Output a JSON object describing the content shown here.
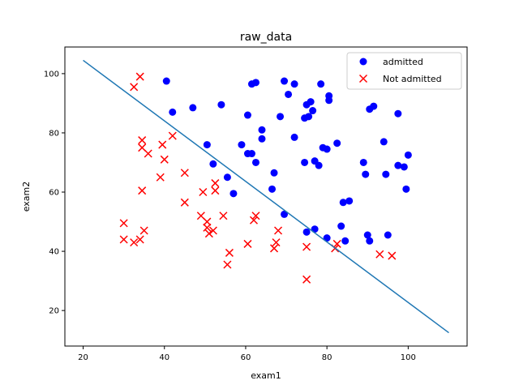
{
  "chart_data": {
    "type": "scatter",
    "title": "raw_data",
    "xlabel": "exam1",
    "ylabel": "exam2",
    "xlim": [
      15.5,
      114.5
    ],
    "ylim": [
      8,
      109
    ],
    "xticks": [
      20,
      40,
      60,
      80,
      100
    ],
    "yticks": [
      20,
      40,
      60,
      80,
      100
    ],
    "grid": false,
    "legend_position": "top-right",
    "series": [
      {
        "name": "admitted",
        "marker": "circle",
        "color": "#0000ff",
        "points": [
          [
            40.5,
            97.5
          ],
          [
            42,
            87
          ],
          [
            47,
            88.5
          ],
          [
            54,
            89.5
          ],
          [
            50.5,
            76
          ],
          [
            52,
            69.5
          ],
          [
            55.5,
            65
          ],
          [
            57,
            59.5
          ],
          [
            59,
            76
          ],
          [
            60.5,
            86
          ],
          [
            60.5,
            73
          ],
          [
            61.5,
            73
          ],
          [
            61.5,
            96.5
          ],
          [
            62.5,
            97
          ],
          [
            62.5,
            70
          ],
          [
            64,
            78
          ],
          [
            64,
            81
          ],
          [
            66.5,
            61
          ],
          [
            67,
            66.5
          ],
          [
            68.5,
            85.5
          ],
          [
            69.5,
            97.5
          ],
          [
            69.5,
            52.5
          ],
          [
            70.5,
            93
          ],
          [
            72,
            96.5
          ],
          [
            72,
            78.5
          ],
          [
            74.5,
            85
          ],
          [
            74.5,
            70
          ],
          [
            75,
            89.5
          ],
          [
            75.5,
            85.5
          ],
          [
            76,
            90.5
          ],
          [
            76.5,
            87.5
          ],
          [
            77,
            70.5
          ],
          [
            78,
            69
          ],
          [
            78.5,
            96.5
          ],
          [
            79,
            75
          ],
          [
            80,
            74.5
          ],
          [
            80.5,
            92.5
          ],
          [
            80.5,
            91
          ],
          [
            82.5,
            76.5
          ],
          [
            77,
            47.5
          ],
          [
            75,
            46.5
          ],
          [
            80,
            44.5
          ],
          [
            83.5,
            48.5
          ],
          [
            84,
            56.5
          ],
          [
            84.5,
            43.5
          ],
          [
            85.5,
            57
          ],
          [
            89,
            70
          ],
          [
            89.5,
            66
          ],
          [
            90,
            45.5
          ],
          [
            90.5,
            43.5
          ],
          [
            90.5,
            88
          ],
          [
            91.5,
            89
          ],
          [
            94,
            77
          ],
          [
            94.5,
            66
          ],
          [
            95,
            45.5
          ],
          [
            97.5,
            69
          ],
          [
            97.5,
            86.5
          ],
          [
            99,
            68.5
          ],
          [
            99.5,
            61
          ],
          [
            100,
            72.5
          ]
        ]
      },
      {
        "name": "Not admitted",
        "marker": "x",
        "color": "#ff0000",
        "points": [
          [
            30,
            49.5
          ],
          [
            30,
            44
          ],
          [
            32.5,
            95.5
          ],
          [
            32.5,
            43
          ],
          [
            34,
            99
          ],
          [
            34,
            44
          ],
          [
            34.5,
            77.5
          ],
          [
            34.5,
            75
          ],
          [
            34.5,
            60.5
          ],
          [
            35,
            47
          ],
          [
            36,
            73
          ],
          [
            39,
            65
          ],
          [
            39.5,
            76
          ],
          [
            40,
            71
          ],
          [
            42,
            79
          ],
          [
            45,
            66.5
          ],
          [
            45,
            56.5
          ],
          [
            49,
            52
          ],
          [
            49.5,
            60
          ],
          [
            50.5,
            50
          ],
          [
            50.5,
            48
          ],
          [
            51,
            46
          ],
          [
            52,
            47
          ],
          [
            52.5,
            63
          ],
          [
            52.5,
            60.5
          ],
          [
            54.5,
            52
          ],
          [
            55.5,
            35.5
          ],
          [
            56,
            39.5
          ],
          [
            60.5,
            42.5
          ],
          [
            62,
            50.5
          ],
          [
            62.5,
            52
          ],
          [
            67,
            41
          ],
          [
            67.5,
            43
          ],
          [
            68,
            47
          ],
          [
            75,
            41.5
          ],
          [
            75,
            30.5
          ],
          [
            82,
            41
          ],
          [
            82.5,
            42.5
          ],
          [
            93,
            39
          ],
          [
            96,
            38.5
          ]
        ]
      },
      {
        "name": "",
        "marker": "line",
        "color": "#1f77b4",
        "points": [
          [
            20,
            104.5
          ],
          [
            110,
            12.5
          ]
        ]
      }
    ]
  }
}
